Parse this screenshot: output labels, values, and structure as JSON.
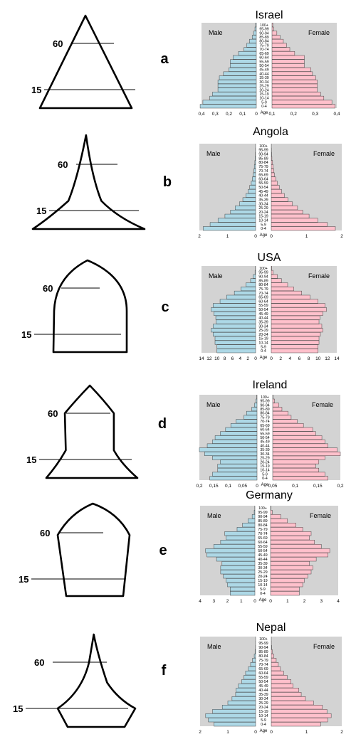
{
  "age_groups": [
    "0-4",
    "5-9",
    "10-14",
    "15-19",
    "20-24",
    "25-29",
    "30-34",
    "35-39",
    "40-44",
    "45-49",
    "50-54",
    "55-59",
    "60-64",
    "65-69",
    "70-74",
    "75-79",
    "80-84",
    "85-89",
    "90-94",
    "95-99",
    "100+"
  ],
  "labels": {
    "male": "Male",
    "female": "Female",
    "age": "Age"
  },
  "colors": {
    "male": "#add8e6",
    "female": "#ffc0cb",
    "panel": "#d3d3d3",
    "outline": "#000000"
  },
  "rows": [
    {
      "letter": "a",
      "shape_labels": [
        "60",
        "15"
      ],
      "shape_type": "triangle",
      "chart": {
        "title": "Israel",
        "max": 0.4,
        "ticks": [
          "0,4",
          "0,3",
          "0,2",
          "0,1",
          "0",
          "0,1",
          "0,2",
          "0,3",
          "0,4"
        ],
        "male": [
          0.41,
          0.39,
          0.34,
          0.32,
          0.28,
          0.28,
          0.28,
          0.27,
          0.24,
          0.2,
          0.19,
          0.19,
          0.17,
          0.13,
          0.09,
          0.07,
          0.05,
          0.03,
          0.02,
          0.01,
          0.005
        ],
        "female": [
          0.39,
          0.37,
          0.32,
          0.3,
          0.28,
          0.28,
          0.28,
          0.27,
          0.25,
          0.24,
          0.2,
          0.2,
          0.2,
          0.14,
          0.11,
          0.09,
          0.07,
          0.05,
          0.03,
          0.01,
          0.005
        ]
      }
    },
    {
      "letter": "b",
      "shape_labels": [
        "60",
        "15"
      ],
      "shape_type": "concave",
      "chart": {
        "title": "Angola",
        "max": 2.2,
        "ticks": [
          "2",
          "1",
          "0",
          "0",
          "1",
          "2"
        ],
        "male": [
          2.05,
          1.78,
          1.47,
          1.2,
          0.98,
          0.8,
          0.63,
          0.5,
          0.38,
          0.29,
          0.23,
          0.17,
          0.13,
          0.09,
          0.07,
          0.05,
          0.03,
          0.02,
          0.01,
          0.005,
          0.002
        ],
        "female": [
          2.0,
          1.75,
          1.45,
          1.18,
          0.98,
          0.82,
          0.66,
          0.52,
          0.41,
          0.32,
          0.25,
          0.19,
          0.14,
          0.1,
          0.08,
          0.06,
          0.04,
          0.02,
          0.01,
          0.005,
          0.002
        ]
      }
    },
    {
      "letter": "c",
      "shape_labels": [
        "60",
        "15"
      ],
      "shape_type": "dome",
      "chart": {
        "title": "USA",
        "max": 14,
        "ticks": [
          "14",
          "12",
          "10",
          "8",
          "6",
          "4",
          "2",
          "0",
          "0",
          "2",
          "4",
          "6",
          "8",
          "10",
          "12",
          "14"
        ],
        "male": [
          10,
          10,
          10.5,
          10.5,
          11,
          11.5,
          11,
          10.2,
          10.3,
          10.8,
          11.5,
          11,
          9.2,
          7.5,
          5.5,
          3.8,
          2.5,
          1.3,
          0.6,
          0.15,
          0.05
        ],
        "female": [
          10,
          10,
          10.2,
          10.2,
          10.5,
          11,
          10.8,
          10.2,
          10.4,
          11,
          11.8,
          11.5,
          10,
          8.3,
          6.5,
          4.8,
          3.5,
          2.2,
          1.3,
          0.4,
          0.1
        ]
      }
    },
    {
      "letter": "d",
      "shape_labels": [
        "60",
        "15"
      ],
      "shape_type": "bell",
      "chart": {
        "title": "Ireland",
        "max": 0.22,
        "ticks": [
          "0,2",
          "0,15",
          "0,1",
          "0,05",
          "0",
          "0,05",
          "0,1",
          "0,15",
          "0,2"
        ],
        "male": [
          0.18,
          0.17,
          0.15,
          0.15,
          0.14,
          0.17,
          0.2,
          0.22,
          0.19,
          0.17,
          0.16,
          0.14,
          0.12,
          0.1,
          0.08,
          0.05,
          0.04,
          0.02,
          0.01,
          0.004,
          0.001
        ],
        "female": [
          0.18,
          0.17,
          0.15,
          0.14,
          0.15,
          0.17,
          0.22,
          0.21,
          0.18,
          0.17,
          0.16,
          0.14,
          0.13,
          0.1,
          0.08,
          0.06,
          0.05,
          0.03,
          0.02,
          0.006,
          0.001
        ]
      }
    },
    {
      "letter": "e",
      "shape_labels": [
        "60",
        "15"
      ],
      "shape_type": "inverted",
      "chart": {
        "title": "Germany",
        "max": 4,
        "ticks": [
          "4",
          "3",
          "2",
          "1",
          "0",
          "0",
          "1",
          "2",
          "3",
          "4"
        ],
        "male": [
          1.8,
          1.8,
          2.0,
          2.1,
          2.3,
          2.5,
          2.5,
          2.4,
          2.8,
          3.5,
          3.6,
          3.0,
          2.5,
          2.1,
          2.2,
          1.3,
          0.9,
          0.5,
          0.2,
          0.05,
          0.01
        ],
        "female": [
          1.7,
          1.7,
          1.9,
          2.0,
          2.2,
          2.4,
          2.5,
          2.3,
          2.7,
          3.4,
          3.5,
          3.0,
          2.6,
          2.3,
          2.4,
          1.9,
          1.5,
          1.0,
          0.6,
          0.1,
          0.02
        ]
      }
    },
    {
      "letter": "f",
      "shape_labels": [
        "60",
        "15"
      ],
      "shape_type": "waisted",
      "chart": {
        "title": "Nepal",
        "max": 2,
        "ticks": [
          "2",
          "1",
          "0",
          "0",
          "1",
          "2"
        ],
        "male": [
          1.5,
          1.7,
          1.8,
          1.55,
          1.2,
          1.0,
          0.85,
          0.72,
          0.7,
          0.62,
          0.5,
          0.42,
          0.36,
          0.26,
          0.18,
          0.11,
          0.05,
          0.02,
          0.005,
          0.002,
          0.001
        ],
        "female": [
          1.4,
          1.6,
          1.7,
          1.58,
          1.45,
          1.2,
          0.97,
          0.85,
          0.78,
          0.62,
          0.56,
          0.45,
          0.35,
          0.26,
          0.2,
          0.14,
          0.07,
          0.03,
          0.01,
          0.002,
          0.001
        ]
      }
    }
  ]
}
